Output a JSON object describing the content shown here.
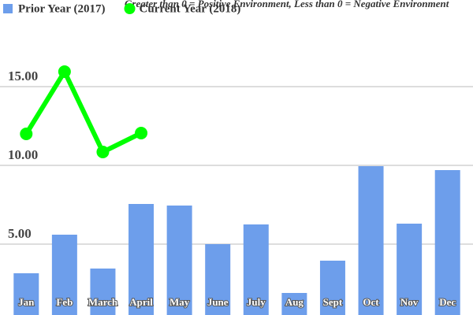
{
  "chart_data": {
    "type": "bar-line",
    "title": "Greater than 0 = Positive Environment, Less than 0 = Negative Environment",
    "categories": [
      "Jan",
      "Feb",
      "March",
      "April",
      "May",
      "June",
      "July",
      "Aug",
      "Sept",
      "Oct",
      "Nov",
      "Dec"
    ],
    "series": [
      {
        "name": "Prior Year (2017)",
        "color": "#6d9eeb",
        "kind": "bar",
        "values": [
          3.15,
          5.6,
          3.45,
          7.55,
          7.45,
          5.0,
          6.25,
          1.9,
          3.95,
          9.95,
          6.3,
          9.7
        ]
      },
      {
        "name": "Current Year (2018)",
        "color": "#00ff00",
        "kind": "line",
        "values": [
          12.0,
          15.95,
          10.85,
          12.05,
          null,
          null,
          null,
          null,
          null,
          null,
          null,
          null
        ]
      }
    ],
    "ylim": [
      0.5,
      20.5
    ],
    "yticks": [
      {
        "value": 5,
        "label": "5.00"
      },
      {
        "value": 10,
        "label": "10.00"
      },
      {
        "value": 15,
        "label": "15.00"
      }
    ],
    "grid": true
  }
}
